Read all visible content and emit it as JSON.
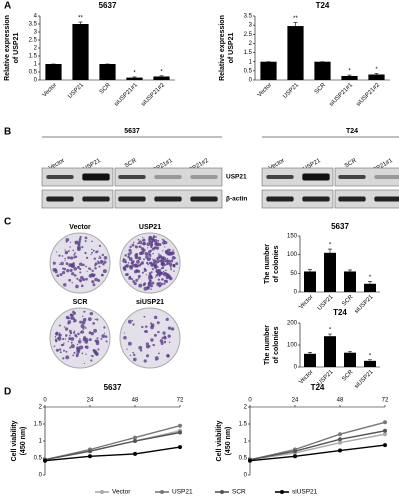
{
  "panel_labels": [
    "A",
    "B",
    "C",
    "D"
  ],
  "blots": [
    {
      "title": "5637",
      "lanes": [
        "Vector",
        "USP21",
        "SCR",
        "siUSP21#1",
        "siUSP21#2"
      ],
      "rows": [
        "USP21",
        "β-actin"
      ]
    },
    {
      "title": "T24",
      "lanes": [
        "Vector",
        "USP21",
        "SCR",
        "siUSP21#1",
        "siUSP21#2"
      ],
      "rows": [
        "USP21",
        "β-actin"
      ]
    }
  ],
  "colonies": {
    "labels": [
      "Vector",
      "USP21",
      "SCR",
      "siUSP21"
    ]
  },
  "chart_data": [
    {
      "type": "bar",
      "title": "5637",
      "ylabel": [
        "Relative expression",
        "of USP21"
      ],
      "categories": [
        "Vector",
        "USP21",
        "SCR",
        "siUSP21#1",
        "siUSP21#2"
      ],
      "values": [
        1,
        3.5,
        1,
        0.15,
        0.22
      ],
      "errors": [
        0,
        0.12,
        0,
        0.04,
        0.04
      ],
      "annotations": [
        null,
        "**",
        null,
        "*",
        "*"
      ],
      "color": "#000000",
      "ylim": [
        0,
        4
      ],
      "yticks": [
        0,
        0.5,
        1,
        1.5,
        2,
        2.5,
        3,
        3.5,
        4
      ]
    },
    {
      "type": "bar",
      "title": "T24",
      "ylabel": [
        "Relative expression",
        "of USP21"
      ],
      "categories": [
        "Vector",
        "USP21",
        "SCR",
        "siUSP21#1",
        "siUSP21#2"
      ],
      "values": [
        1,
        2.95,
        1,
        0.22,
        0.3
      ],
      "errors": [
        0,
        0.2,
        0,
        0.05,
        0.05
      ],
      "annotations": [
        null,
        "**",
        null,
        "*",
        "*"
      ],
      "color": "#000000",
      "ylim": [
        0,
        3.5
      ],
      "yticks": [
        0,
        0.5,
        1,
        1.5,
        2,
        2.5,
        3,
        3.5
      ]
    },
    {
      "type": "bar",
      "title": "5637",
      "ylabel": [
        "The number",
        "of colonies"
      ],
      "categories": [
        "Vector",
        "USP21",
        "SCR",
        "siUSP21"
      ],
      "values": [
        55,
        105,
        55,
        22
      ],
      "errors": [
        5,
        10,
        4,
        6
      ],
      "annotations": [
        null,
        "*",
        null,
        "*"
      ],
      "color": "#000000",
      "ylim": [
        0,
        150
      ],
      "yticks": [
        0,
        50,
        100,
        150
      ]
    },
    {
      "type": "bar",
      "title": "T24",
      "ylabel": [
        "The number",
        "of colonies"
      ],
      "categories": [
        "Vector",
        "USP21",
        "SCR",
        "siUSP21"
      ],
      "values": [
        60,
        140,
        65,
        28
      ],
      "errors": [
        6,
        10,
        6,
        5
      ],
      "annotations": [
        null,
        "*",
        null,
        "*"
      ],
      "color": "#000000",
      "ylim": [
        0,
        200
      ],
      "yticks": [
        0,
        100,
        200
      ]
    },
    {
      "type": "line",
      "title": "5637",
      "ylabel": [
        "Cell viability",
        "(450 nm)"
      ],
      "x": [
        0,
        24,
        48,
        72
      ],
      "xlim": [
        0,
        72
      ],
      "xticks": [
        0,
        24,
        48,
        72
      ],
      "ylim": [
        0,
        2
      ],
      "yticks": [
        0,
        0.5,
        1,
        1.5,
        2
      ],
      "legend": "bottom",
      "series": [
        {
          "name": "Vector",
          "color": "#aaaaaa",
          "values": [
            0.45,
            0.7,
            1.0,
            1.3
          ]
        },
        {
          "name": "USP21",
          "color": "#777777",
          "values": [
            0.45,
            0.75,
            1.1,
            1.45
          ]
        },
        {
          "name": "SCR",
          "color": "#555555",
          "values": [
            0.45,
            0.7,
            1.0,
            1.25
          ]
        },
        {
          "name": "siUSP21",
          "color": "#000000",
          "values": [
            0.42,
            0.55,
            0.62,
            0.82
          ]
        }
      ]
    },
    {
      "type": "line",
      "title": "T24",
      "ylabel": [
        "Cell viability",
        "(450 nm)"
      ],
      "x": [
        0,
        24,
        48,
        72
      ],
      "xlim": [
        0,
        72
      ],
      "xticks": [
        0,
        24,
        48,
        72
      ],
      "ylim": [
        0,
        2
      ],
      "yticks": [
        0,
        0.5,
        1,
        1.5,
        2
      ],
      "series": [
        {
          "name": "Vector",
          "color": "#aaaaaa",
          "values": [
            0.45,
            0.65,
            0.95,
            1.2
          ]
        },
        {
          "name": "USP21",
          "color": "#777777",
          "values": [
            0.45,
            0.75,
            1.2,
            1.55
          ]
        },
        {
          "name": "SCR",
          "color": "#555555",
          "values": [
            0.45,
            0.7,
            1.05,
            1.3
          ]
        },
        {
          "name": "siUSP21",
          "color": "#000000",
          "values": [
            0.42,
            0.55,
            0.72,
            0.88
          ]
        }
      ]
    }
  ]
}
